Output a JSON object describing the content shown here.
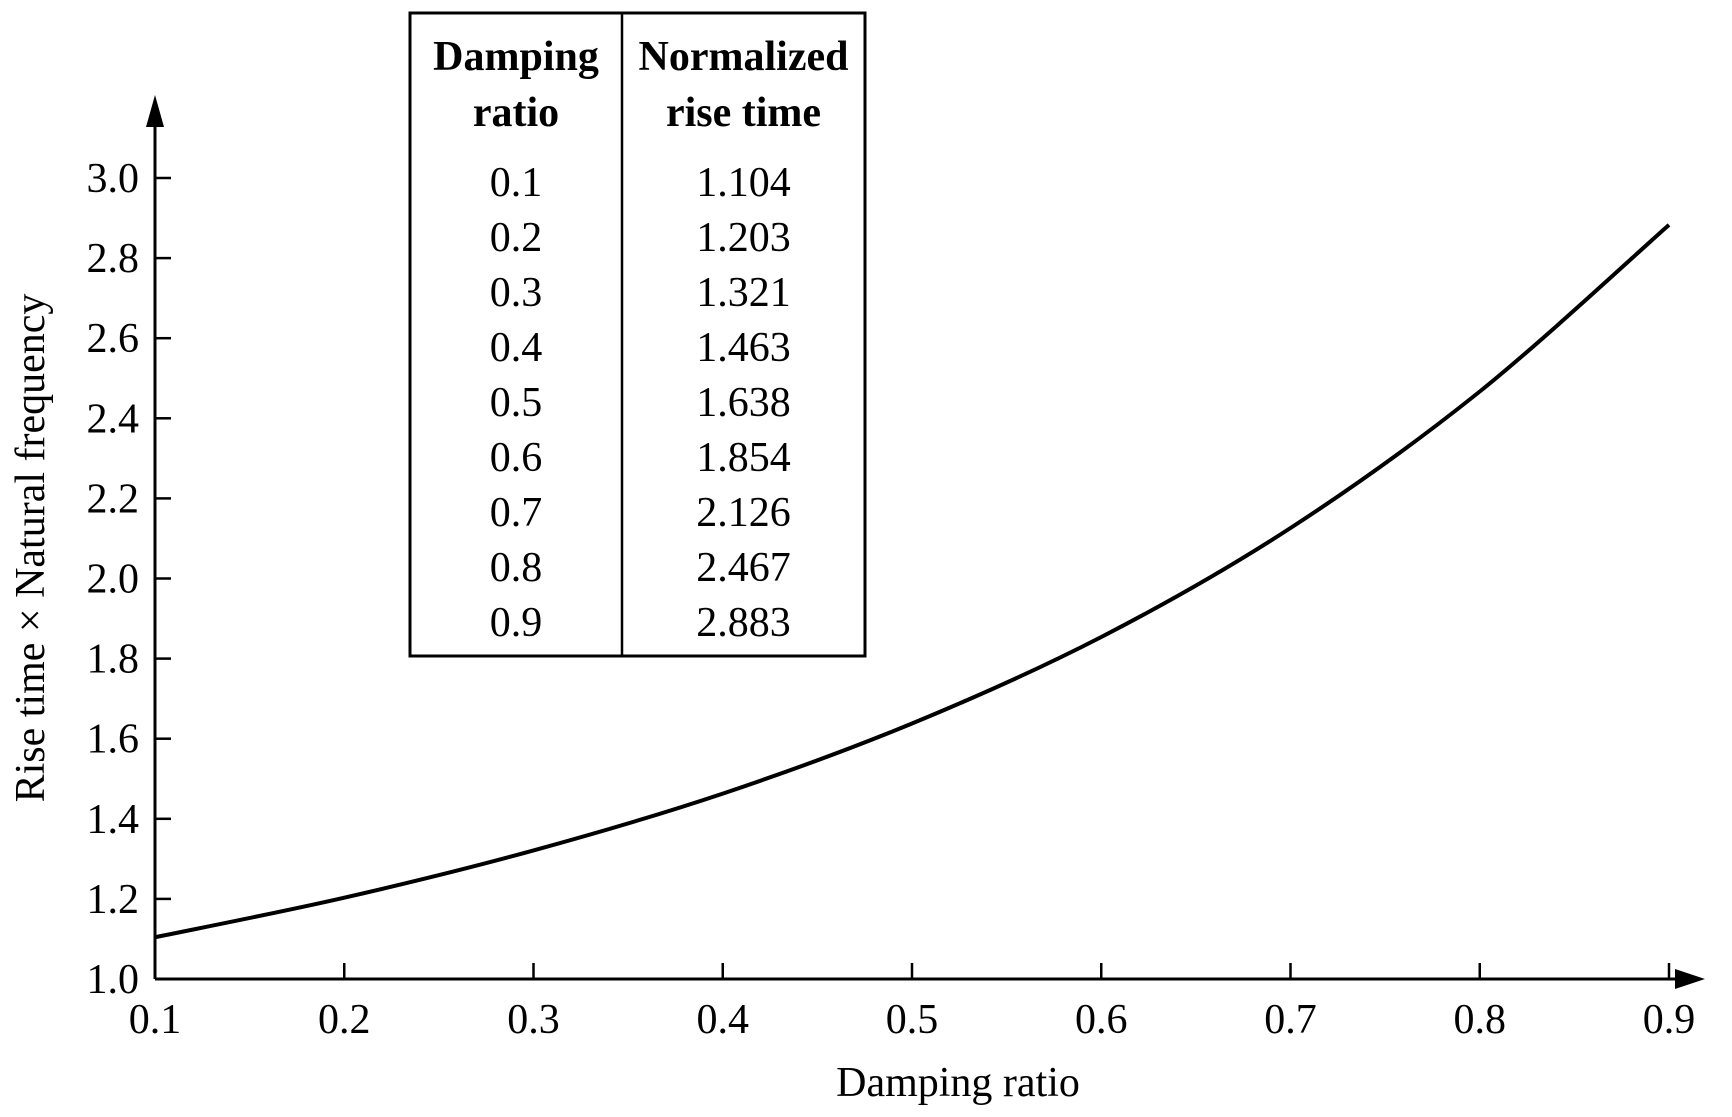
{
  "chart_data": {
    "type": "line",
    "title": "",
    "xlabel": "Damping ratio",
    "ylabel": "Rise time × Natural frequency",
    "xlim": [
      0.1,
      0.9
    ],
    "ylim": [
      1.0,
      3.0
    ],
    "x_ticks": [
      "0.1",
      "0.2",
      "0.3",
      "0.4",
      "0.5",
      "0.6",
      "0.7",
      "0.8",
      "0.9"
    ],
    "y_ticks": [
      "1.0",
      "1.2",
      "1.4",
      "1.6",
      "1.8",
      "2.0",
      "2.2",
      "2.4",
      "2.6",
      "2.8",
      "3.0"
    ],
    "grid": false,
    "legend": "none",
    "series": [
      {
        "x": [
          0.1,
          0.2,
          0.3,
          0.4,
          0.5,
          0.6,
          0.7,
          0.8,
          0.9
        ],
        "y": [
          1.104,
          1.203,
          1.321,
          1.463,
          1.638,
          1.854,
          2.126,
          2.467,
          2.883
        ]
      }
    ],
    "table": {
      "headers": [
        [
          "Damping",
          "ratio"
        ],
        [
          "Normalized",
          "rise time"
        ]
      ],
      "rows": [
        [
          "0.1",
          "1.104"
        ],
        [
          "0.2",
          "1.203"
        ],
        [
          "0.3",
          "1.321"
        ],
        [
          "0.4",
          "1.463"
        ],
        [
          "0.5",
          "1.638"
        ],
        [
          "0.6",
          "1.854"
        ],
        [
          "0.7",
          "2.126"
        ],
        [
          "0.8",
          "2.467"
        ],
        [
          "0.9",
          "2.883"
        ]
      ]
    }
  }
}
